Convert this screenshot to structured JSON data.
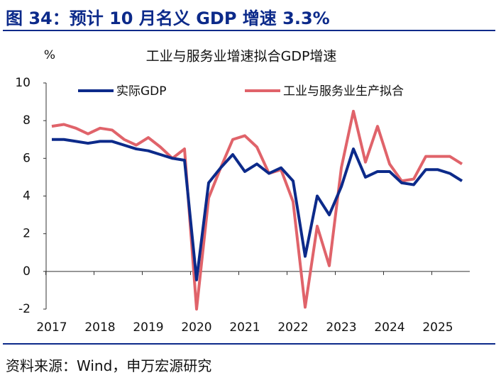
{
  "header": {
    "title": "图 34：预计 10 月名义 GDP 增速 3.3%"
  },
  "source": "资料来源：Wind，申万宏源研究",
  "chart_data": {
    "type": "line",
    "title": "工业与服务业增速拟合GDP增速",
    "y_label": "%",
    "categories": [
      "2017",
      null,
      null,
      null,
      "2018",
      null,
      null,
      null,
      "2019",
      null,
      null,
      null,
      "2020",
      null,
      null,
      null,
      "2021",
      null,
      null,
      null,
      "2022",
      null,
      null,
      null,
      "2023",
      null,
      null,
      null,
      "2024",
      null,
      null,
      null,
      "2025",
      null,
      null
    ],
    "series": [
      {
        "name": "实际GDP",
        "color": "#0c2a8a",
        "values": [
          7.0,
          7.0,
          6.9,
          6.8,
          6.9,
          6.9,
          6.7,
          6.5,
          6.4,
          6.2,
          6.0,
          5.9,
          -0.45,
          4.7,
          5.5,
          6.2,
          5.3,
          5.7,
          5.2,
          5.5,
          4.8,
          0.8,
          4.0,
          3.0,
          4.5,
          6.5,
          5.0,
          5.3,
          5.3,
          4.7,
          4.6,
          5.4,
          5.4,
          5.2,
          4.8
        ]
      },
      {
        "name": "工业与服务业生产拟合",
        "color": "#e0636a",
        "values": [
          7.7,
          7.8,
          7.6,
          7.3,
          7.6,
          7.5,
          7.0,
          6.7,
          7.1,
          6.6,
          6.0,
          6.5,
          -2.0,
          3.9,
          5.5,
          7.0,
          7.2,
          6.6,
          5.2,
          5.4,
          3.7,
          -1.9,
          2.4,
          0.3,
          5.5,
          8.5,
          5.8,
          7.7,
          5.7,
          4.8,
          4.9,
          6.1,
          6.1,
          6.1,
          5.7
        ]
      }
    ],
    "ylim": [
      -2,
      10
    ],
    "yticks": [
      -2,
      0,
      2,
      4,
      6,
      8,
      10
    ],
    "grid": false
  }
}
